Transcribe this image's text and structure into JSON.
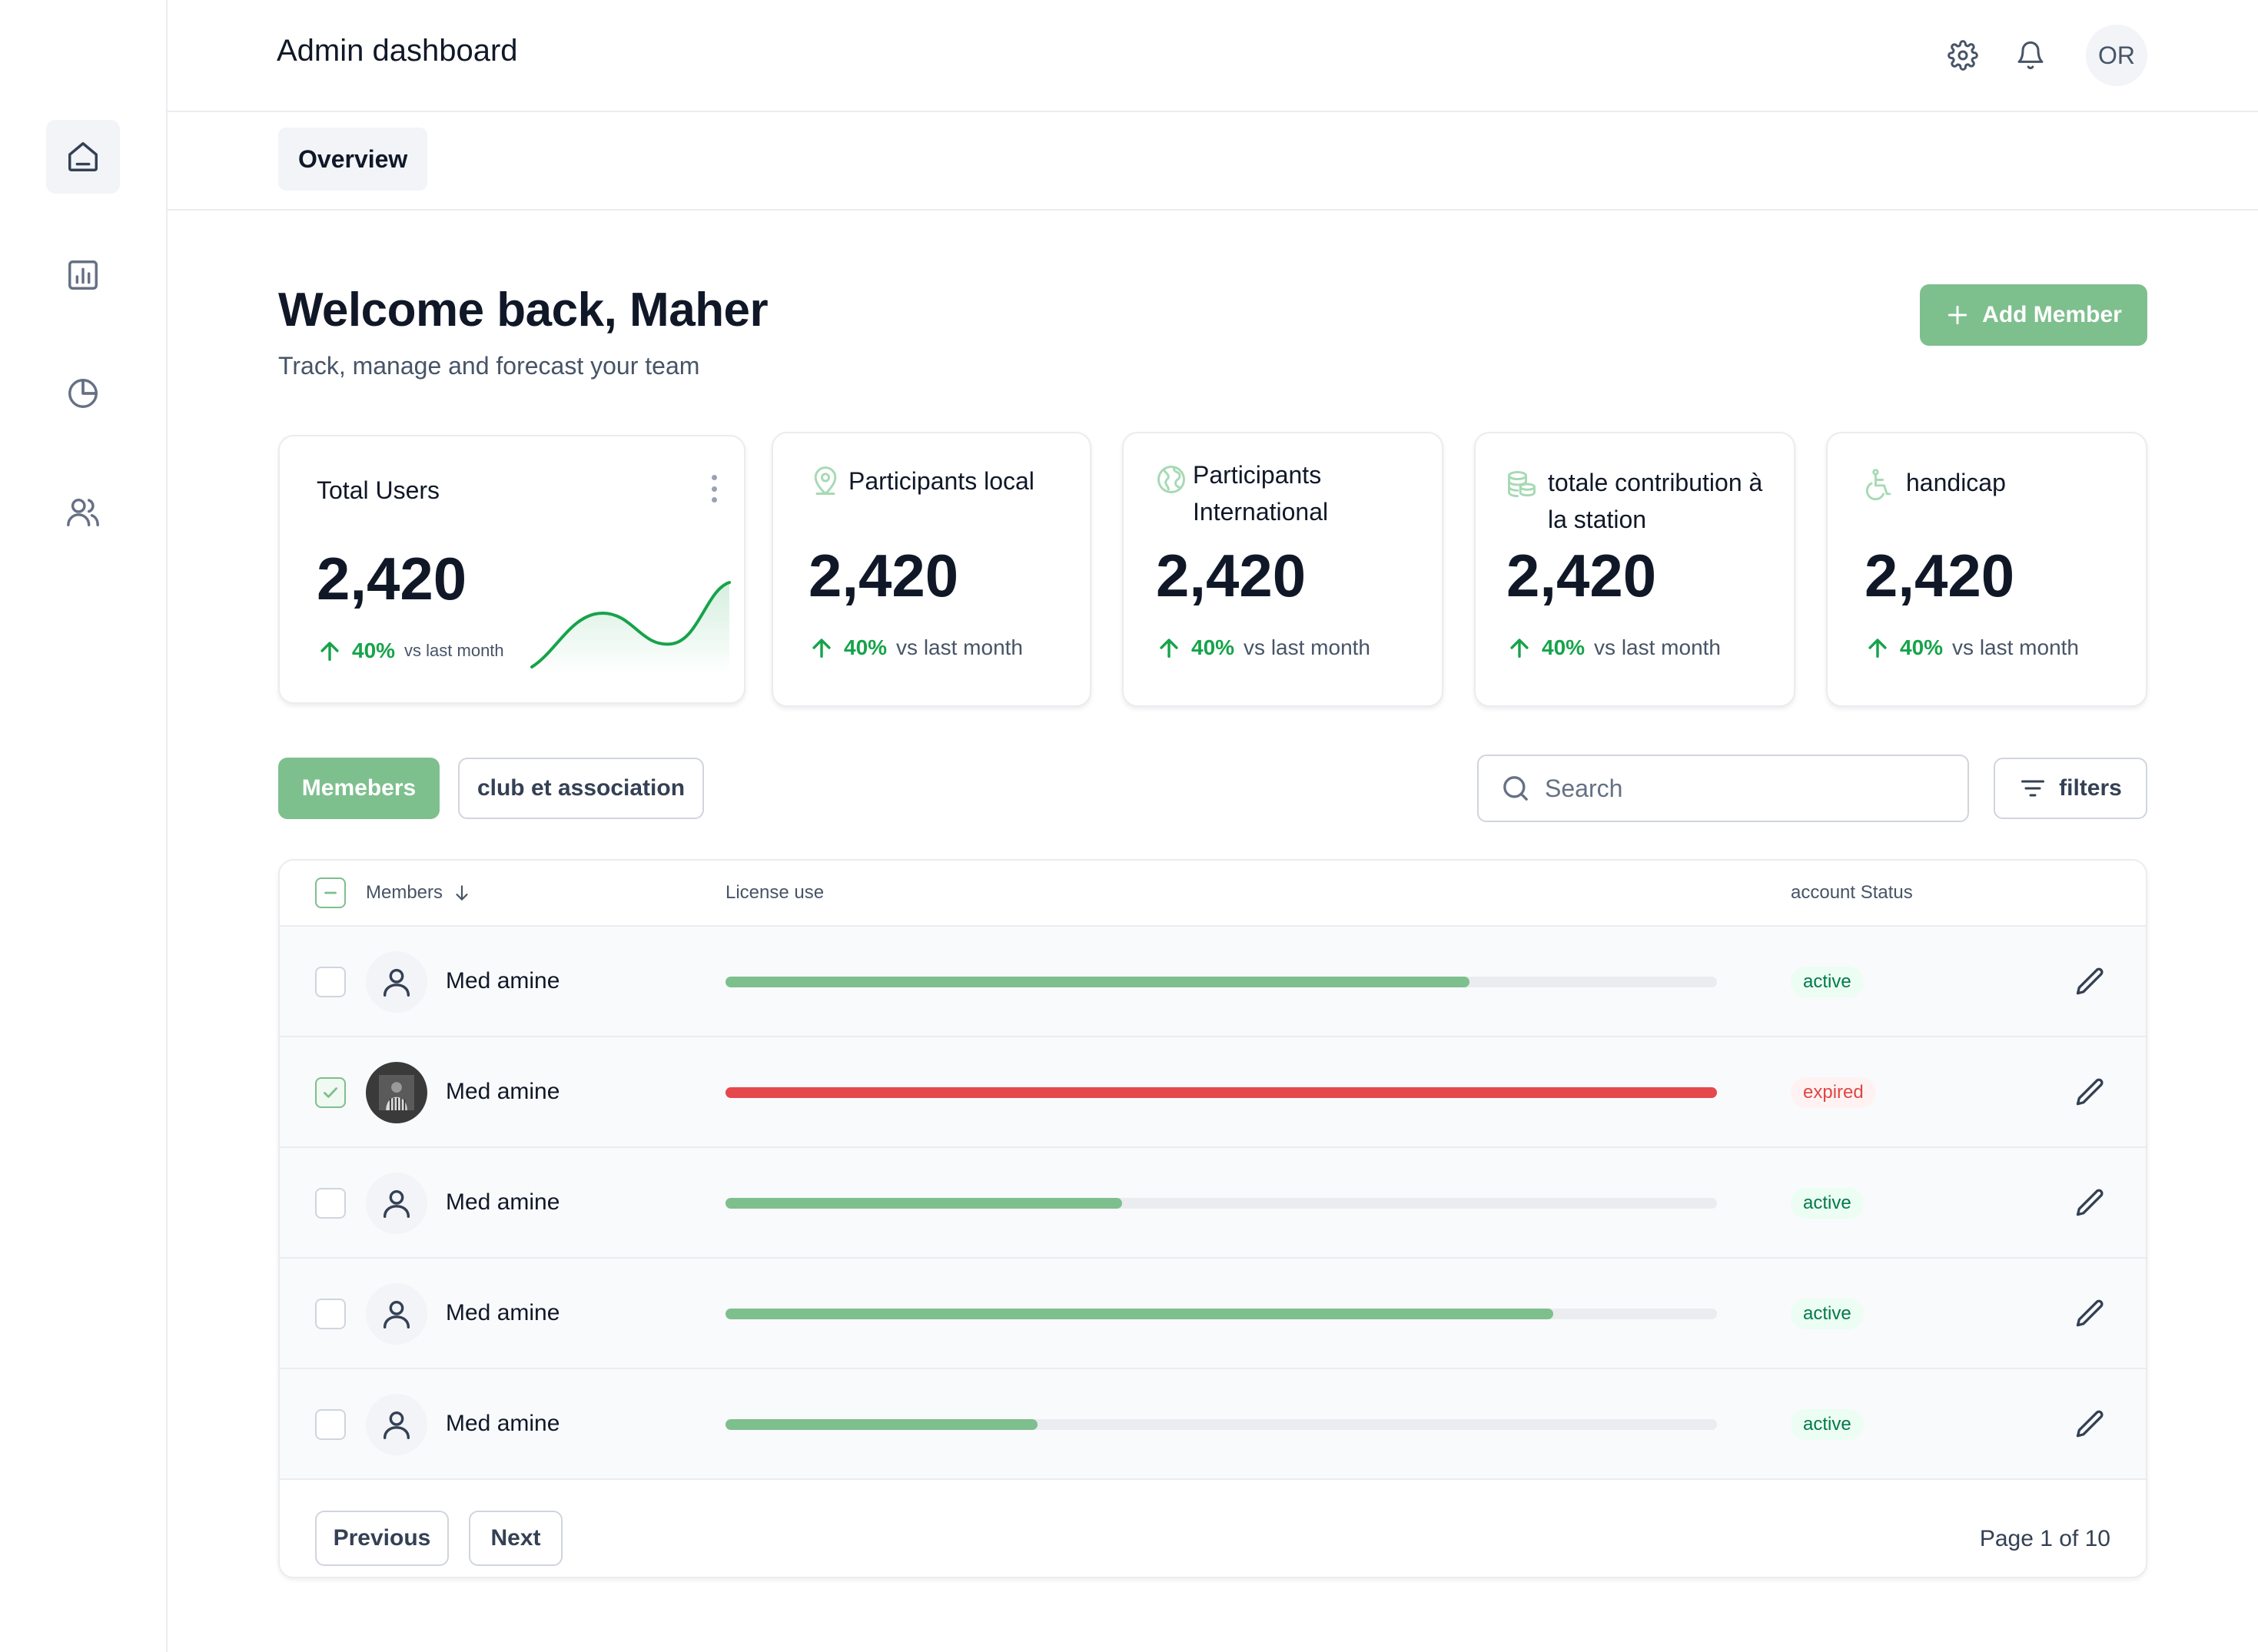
{
  "header": {
    "title": "Admin dashboard",
    "user_initials": "OR"
  },
  "sidebar": {
    "items": [
      {
        "icon": "home-icon",
        "active": true
      },
      {
        "icon": "bar-chart-icon",
        "active": false
      },
      {
        "icon": "pie-chart-icon",
        "active": false
      },
      {
        "icon": "users-icon",
        "active": false
      }
    ]
  },
  "tabs": [
    {
      "label": "Overview",
      "active": true
    }
  ],
  "welcome": {
    "title": "Welcome back, Maher",
    "subtitle": "Track, manage and forecast your team",
    "add_button": "Add Member"
  },
  "stats": [
    {
      "title": "Total Users",
      "value": "2,420",
      "change": "40%",
      "period": "vs last month",
      "icon": "more-vertical-icon"
    },
    {
      "title": "Participants local",
      "value": "2,420",
      "change": "40%",
      "period": "vs last month",
      "icon": "map-pin-icon"
    },
    {
      "title": "Participants International",
      "value": "2,420",
      "change": "40%",
      "period": "vs last month",
      "icon": "globe-icon"
    },
    {
      "title": "totale contribution à la station",
      "value": "2,420",
      "change": "40%",
      "period": "vs last month",
      "icon": "coins-icon"
    },
    {
      "title": "handicap",
      "value": "2,420",
      "change": "40%",
      "period": "vs last month",
      "icon": "wheelchair-icon"
    }
  ],
  "filters": {
    "tab_active": "Memebers",
    "tab_other": "club et association",
    "search_placeholder": "Search",
    "filters_label": "filters"
  },
  "table": {
    "columns": {
      "members": "Members",
      "license": "License use",
      "status": "account Status"
    },
    "rows": [
      {
        "name": "Med amine",
        "license_use": 0.75,
        "status": "active",
        "checked": false,
        "photo": false
      },
      {
        "name": "Med amine",
        "license_use": 1.0,
        "status": "expired",
        "checked": true,
        "photo": true
      },
      {
        "name": "Med amine",
        "license_use": 0.4,
        "status": "active",
        "checked": false,
        "photo": false
      },
      {
        "name": "Med amine",
        "license_use": 0.835,
        "status": "active",
        "checked": false,
        "photo": false
      },
      {
        "name": "Med amine",
        "license_use": 0.315,
        "status": "active",
        "checked": false,
        "photo": false
      }
    ],
    "pagination": {
      "previous": "Previous",
      "next": "Next",
      "page_info": "Page 1 of 10"
    }
  },
  "colors": {
    "accent": "#7ebf8e",
    "bar_ok": "#7ebf8e",
    "bar_expired": "#e5484d",
    "trend_up": "#16a34a"
  }
}
